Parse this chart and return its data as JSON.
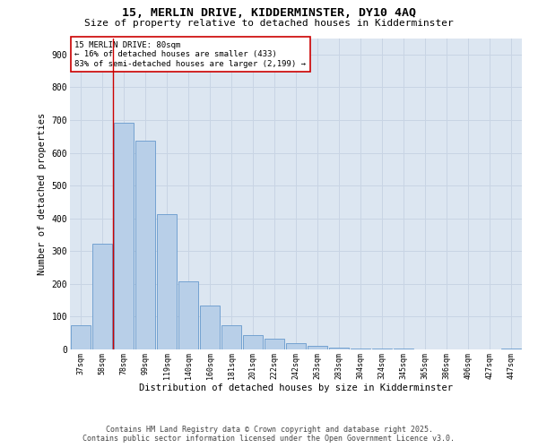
{
  "title_line1": "15, MERLIN DRIVE, KIDDERMINSTER, DY10 4AQ",
  "title_line2": "Size of property relative to detached houses in Kidderminster",
  "xlabel": "Distribution of detached houses by size in Kidderminster",
  "ylabel": "Number of detached properties",
  "categories": [
    "37sqm",
    "58sqm",
    "78sqm",
    "99sqm",
    "119sqm",
    "140sqm",
    "160sqm",
    "181sqm",
    "201sqm",
    "222sqm",
    "242sqm",
    "263sqm",
    "283sqm",
    "304sqm",
    "324sqm",
    "345sqm",
    "365sqm",
    "386sqm",
    "406sqm",
    "427sqm",
    "447sqm"
  ],
  "values": [
    75,
    323,
    693,
    638,
    412,
    207,
    135,
    75,
    45,
    32,
    18,
    10,
    5,
    2,
    2,
    2,
    0,
    0,
    0,
    0,
    2
  ],
  "bar_color": "#b8cfe8",
  "bar_edge_color": "#6699cc",
  "vline_color": "#cc0000",
  "annotation_text": "15 MERLIN DRIVE: 80sqm\n← 16% of detached houses are smaller (433)\n83% of semi-detached houses are larger (2,199) →",
  "annotation_box_color": "#ffffff",
  "annotation_box_edge_color": "#cc0000",
  "ylim": [
    0,
    950
  ],
  "yticks": [
    0,
    100,
    200,
    300,
    400,
    500,
    600,
    700,
    800,
    900
  ],
  "grid_color": "#c8d4e4",
  "background_color": "#dce6f1",
  "footer_line1": "Contains HM Land Registry data © Crown copyright and database right 2025.",
  "footer_line2": "Contains public sector information licensed under the Open Government Licence v3.0."
}
